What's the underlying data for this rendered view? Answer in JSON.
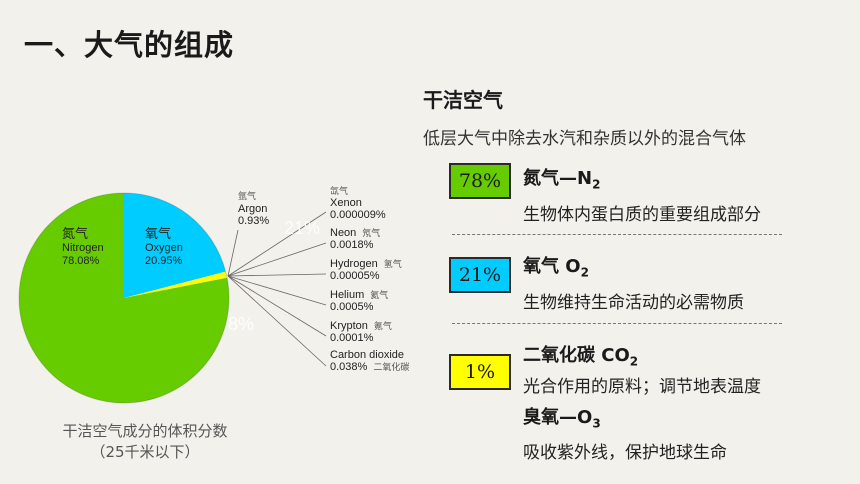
{
  "page": {
    "title": "一、大气的组成"
  },
  "chart": {
    "caption_line1": "干洁空气成分的体积分数",
    "caption_line2": "（25千米以下）",
    "ghost_labels": {
      "a": "21%",
      "b": "8%"
    }
  },
  "chart_data": {
    "type": "pie",
    "title": "",
    "slices": [
      {
        "cn": "氮气",
        "name": "Nitrogen",
        "value": 78.08,
        "value_label": "78.08%",
        "color": "#66cc00"
      },
      {
        "cn": "氧气",
        "name": "Oxygen",
        "value": 20.95,
        "value_label": "20.95%",
        "color": "#00ccff"
      },
      {
        "cn": "氩气",
        "name": "Argon",
        "value": 0.93,
        "value_label": "0.93%",
        "color": "#ffff00"
      },
      {
        "cn": "氙气",
        "name": "Xenon",
        "value": 9e-06,
        "value_label": "0.000009%",
        "color": "#e8e8e8"
      },
      {
        "cn": "氖气",
        "name": "Neon",
        "value": 0.0018,
        "value_label": "0.0018%",
        "color": "#e8e8e8"
      },
      {
        "cn": "氢气",
        "name": "Hydrogen",
        "value": 5e-05,
        "value_label": "0.00005%",
        "color": "#e8e8e8"
      },
      {
        "cn": "氦气",
        "name": "Helium",
        "value": 0.0005,
        "value_label": "0.0005%",
        "color": "#e8e8e8"
      },
      {
        "cn": "氪气",
        "name": "Krypton",
        "value": 0.0001,
        "value_label": "0.0001%",
        "color": "#e8e8e8"
      },
      {
        "cn": "二氧化碳",
        "name": "Carbon dioxide",
        "value": 0.038,
        "value_label": "0.038%",
        "color": "#e8e8e8"
      }
    ]
  },
  "info": {
    "heading": "干洁空气",
    "definition": "低层大气中除去水汽和杂质以外的混合气体",
    "items": [
      {
        "badge": "78%",
        "badge_color": "#66cc00",
        "name": "氮气—N",
        "sub": "2",
        "desc": "生物体内蛋白质的重要组成部分"
      },
      {
        "badge": "21%",
        "badge_color": "#00ccff",
        "name": "氧气  O",
        "sub": "2",
        "desc": "生物维持生命活动的必需物质"
      },
      {
        "badge": "1%",
        "badge_color": "#ffff00",
        "name": "二氧化碳  CO",
        "sub": "2",
        "desc": "光合作用的原料；调节地表温度"
      },
      {
        "badge": "",
        "badge_color": "",
        "name": "臭氧—O",
        "sub": "3",
        "desc": "吸收紫外线，保护地球生命"
      }
    ]
  }
}
